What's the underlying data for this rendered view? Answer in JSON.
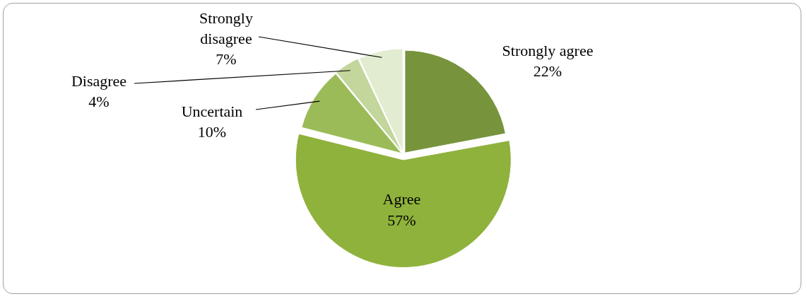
{
  "chart_data": {
    "type": "pie",
    "categories": [
      "Strongly agree",
      "Agree",
      "Uncertain",
      "Disagree",
      "Strongly disagree"
    ],
    "values": [
      22,
      57,
      10,
      4,
      7
    ],
    "colors": [
      "#77933c",
      "#8fb23c",
      "#9bbb59",
      "#c3d69b",
      "#e2ecd0"
    ],
    "value_labels": [
      "22%",
      "57%",
      "10%",
      "4%",
      "7%"
    ],
    "legend": false
  }
}
